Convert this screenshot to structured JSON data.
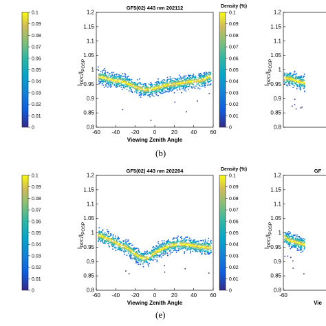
{
  "colorbar": {
    "label": "Density (%)",
    "ticks": [
      "0.1",
      "0.09",
      "0.08",
      "0.07",
      "0.06",
      "0.05",
      "0.04",
      "0.03",
      "0.02",
      "0.01",
      "0"
    ]
  },
  "captions": [
    "(b)",
    "(e)"
  ],
  "chart_data": [
    {
      "type": "scatter",
      "title": "",
      "xlabel": "",
      "ylabel": "",
      "xlim": [
        -60,
        60
      ],
      "ylim": [
        0.8,
        1.2
      ],
      "xticks": [
        "60"
      ],
      "yticks": [],
      "colorbar_ticks": [
        "0.1",
        "0.09",
        "0.08",
        "0.07",
        "0.06",
        "0.05",
        "0.04",
        "0.03",
        "0.02",
        "0.01",
        "0"
      ],
      "trend": {
        "x": [
          45,
          50,
          55,
          60
        ],
        "y": [
          0.955,
          0.955,
          0.96,
          0.962
        ]
      }
    },
    {
      "type": "scatter",
      "title": "GF5(02) 443 nm 202112",
      "xlabel": "Viewing Zenith Angle",
      "ylabel": "I_DPC/I_POSP",
      "xlim": [
        -60,
        60
      ],
      "ylim": [
        0.8,
        1.2
      ],
      "xticks": [
        "-60",
        "-40",
        "-20",
        "0",
        "20",
        "40",
        "60"
      ],
      "yticks": [
        "0.8",
        "0.85",
        "0.9",
        "0.95",
        "1",
        "1.05",
        "1.1",
        "1.15",
        "1.2"
      ],
      "colorbar_label": "Density (%)",
      "colorbar_ticks": [
        "0.1",
        "0.09",
        "0.08",
        "0.07",
        "0.06",
        "0.05",
        "0.04",
        "0.03",
        "0.02",
        "0.01",
        "0"
      ],
      "caption": "(b)",
      "trend": {
        "x": [
          -55,
          -50,
          -45,
          -40,
          -35,
          -30,
          -25,
          -20,
          -15,
          -10,
          -5,
          0,
          5,
          10,
          15,
          20,
          25,
          30,
          35,
          40,
          45,
          50,
          55
        ],
        "y": [
          0.975,
          0.97,
          0.965,
          0.962,
          0.96,
          0.955,
          0.948,
          0.94,
          0.935,
          0.93,
          0.932,
          0.935,
          0.94,
          0.945,
          0.948,
          0.95,
          0.952,
          0.955,
          0.958,
          0.96,
          0.962,
          0.965,
          0.975
        ]
      }
    },
    {
      "type": "scatter",
      "title": "",
      "xlabel": "",
      "ylabel": "I_DPC/I_POSP",
      "xlim": [
        -60,
        -40
      ],
      "ylim": [
        0.8,
        1.2
      ],
      "xticks": [],
      "yticks": [
        "0.8",
        "0.85",
        "0.9",
        "0.95",
        "1",
        "1.05",
        "1.1",
        "1.15",
        "1.2"
      ],
      "trend": {
        "x": [
          -55,
          -50,
          -45,
          -40
        ],
        "y": [
          0.97,
          0.965,
          0.96,
          0.955
        ]
      }
    },
    {
      "type": "scatter",
      "title": "",
      "xlabel": "",
      "ylabel": "",
      "xlim": [
        -60,
        60
      ],
      "ylim": [
        0.8,
        1.2
      ],
      "xticks": [
        "60"
      ],
      "yticks": [],
      "colorbar_ticks": [
        "0.1",
        "0.09",
        "0.08",
        "0.07",
        "0.06",
        "0.05",
        "0.04",
        "0.03",
        "0.02",
        "0.01",
        "0"
      ],
      "trend": {
        "x": [
          45,
          50,
          55,
          60
        ],
        "y": [
          0.955,
          0.955,
          0.958,
          0.96
        ]
      }
    },
    {
      "type": "scatter",
      "title": "GF5(02) 443 nm 202204",
      "xlabel": "Viewing Zenith Angle",
      "ylabel": "I_DPC/I_POSP",
      "xlim": [
        -60,
        60
      ],
      "ylim": [
        0.8,
        1.2
      ],
      "xticks": [
        "-60",
        "-40",
        "-20",
        "0",
        "20",
        "40",
        "60"
      ],
      "yticks": [
        "0.8",
        "0.85",
        "0.9",
        "0.95",
        "1",
        "1.05",
        "1.1",
        "1.15",
        "1.2"
      ],
      "colorbar_label": "Density (%)",
      "colorbar_ticks": [
        "0.1",
        "0.09",
        "0.08",
        "0.07",
        "0.06",
        "0.05",
        "0.04",
        "0.03",
        "0.02",
        "0.01",
        "0"
      ],
      "caption": "(e)",
      "trend": {
        "x": [
          -55,
          -50,
          -45,
          -40,
          -35,
          -30,
          -25,
          -20,
          -15,
          -10,
          -5,
          0,
          5,
          10,
          15,
          20,
          25,
          30,
          35,
          40,
          45,
          50,
          55
        ],
        "y": [
          0.99,
          0.98,
          0.975,
          0.965,
          0.955,
          0.95,
          0.94,
          0.925,
          0.915,
          0.91,
          0.918,
          0.93,
          0.94,
          0.948,
          0.955,
          0.958,
          0.96,
          0.96,
          0.958,
          0.955,
          0.952,
          0.95,
          0.948
        ]
      }
    },
    {
      "type": "scatter",
      "title": "GF",
      "xlabel": "Vie",
      "ylabel": "I_DPC/I_POSP",
      "xlim": [
        -60,
        -40
      ],
      "ylim": [
        0.8,
        1.2
      ],
      "xticks": [
        "-60"
      ],
      "yticks": [
        "0.8",
        "0.85",
        "0.9",
        "0.95",
        "1",
        "1.05",
        "1.1",
        "1.15",
        "1.2"
      ],
      "trend": {
        "x": [
          -58,
          -55,
          -50,
          -45,
          -40
        ],
        "y": [
          0.985,
          0.975,
          0.97,
          0.965,
          0.96
        ]
      }
    }
  ]
}
